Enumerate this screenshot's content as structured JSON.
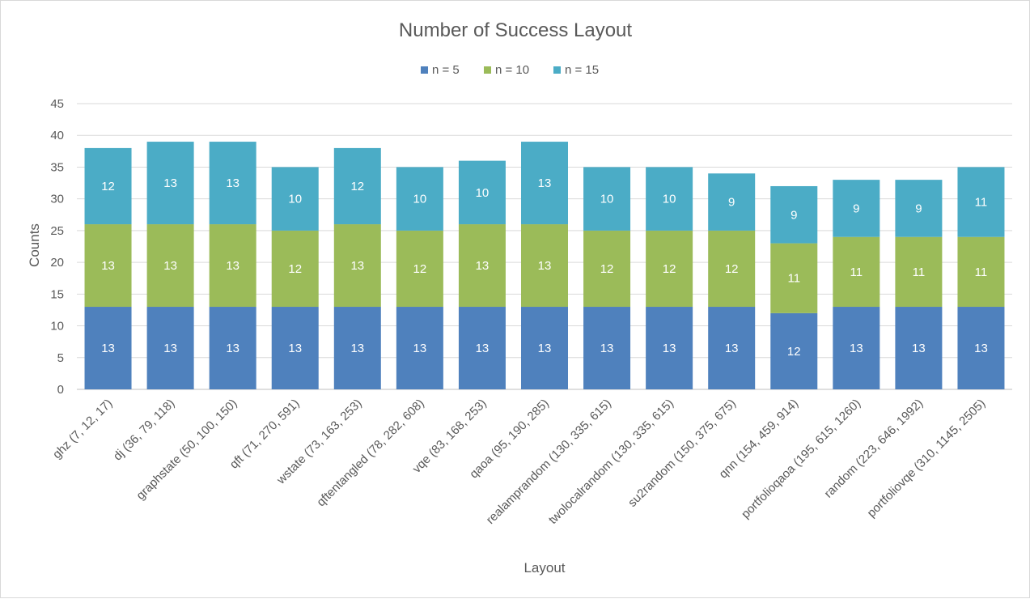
{
  "chart_data": {
    "type": "bar",
    "stacked": true,
    "title": "Number of Success Layout",
    "xlabel": "Layout",
    "ylabel": "Counts",
    "ylim": [
      0,
      45
    ],
    "ytick_step": 5,
    "yticks": [
      "0",
      "5",
      "10",
      "15",
      "20",
      "25",
      "30",
      "35",
      "40",
      "45"
    ],
    "grid": true,
    "legend_position": "top",
    "categories": [
      "ghz (7, 12, 17)",
      "dj (36, 79, 118)",
      "graphstate (50, 100, 150)",
      "qft (71, 270, 591)",
      "wstate (73, 163, 253)",
      "qftentangled (78, 282, 608)",
      "vqe (83, 168, 253)",
      "qaoa (95, 190, 285)",
      "realamprandom (130, 335, 615)",
      "twolocalrandom (130, 335, 615)",
      "su2random (150, 375, 675)",
      "qnn (154, 459, 914)",
      "portfolioqaoa (195, 615, 1260)",
      "random (223, 646, 1992)",
      "portfoliovqe (310, 1145, 2505)"
    ],
    "series": [
      {
        "name": "n = 5",
        "color": "#4f81bd",
        "values": [
          13,
          13,
          13,
          13,
          13,
          13,
          13,
          13,
          13,
          13,
          13,
          12,
          13,
          13,
          13
        ]
      },
      {
        "name": "n = 10",
        "color": "#9bbb59",
        "values": [
          13,
          13,
          13,
          12,
          13,
          12,
          13,
          13,
          12,
          12,
          12,
          11,
          11,
          11,
          11
        ]
      },
      {
        "name": "n = 15",
        "color": "#4bacc6",
        "values": [
          12,
          13,
          13,
          10,
          12,
          10,
          10,
          13,
          10,
          10,
          9,
          9,
          9,
          9,
          11
        ]
      }
    ]
  }
}
